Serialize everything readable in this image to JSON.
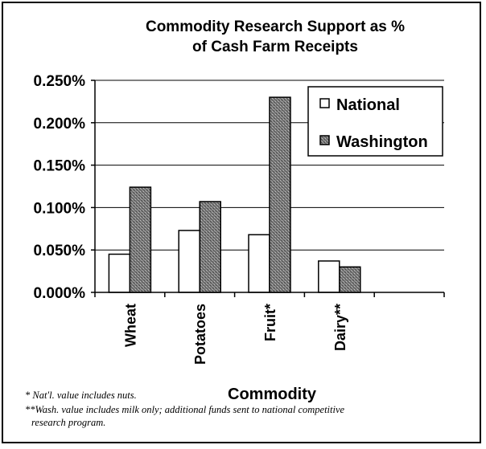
{
  "chart_data": {
    "type": "bar",
    "title_lines": [
      "Commodity Research Support as %",
      "of Cash Farm Receipts"
    ],
    "xlabel": "Commodity",
    "ylabel": "",
    "categories": [
      "Wheat",
      "Potatoes",
      "Fruit*",
      "Dairy**"
    ],
    "series": [
      {
        "name": "National",
        "values": [
          0.045,
          0.073,
          0.068,
          0.037
        ],
        "color": "#ffffff"
      },
      {
        "name": "Washington",
        "values": [
          0.124,
          0.107,
          0.23,
          0.03
        ],
        "color": "#8a8a8a"
      }
    ],
    "ylim": [
      0,
      0.25
    ],
    "yticks": [
      "0.000%",
      "0.050%",
      "0.100%",
      "0.150%",
      "0.200%",
      "0.250%"
    ],
    "ytick_values": [
      0,
      0.05,
      0.1,
      0.15,
      0.2,
      0.25
    ],
    "grid": true,
    "legend_position": "top-right"
  },
  "footnotes": {
    "note1": "* Nat'l. value includes nuts.",
    "note2_line1": "**Wash. value includes milk only; additional funds sent to national competitive",
    "note2_line2": "research program."
  }
}
